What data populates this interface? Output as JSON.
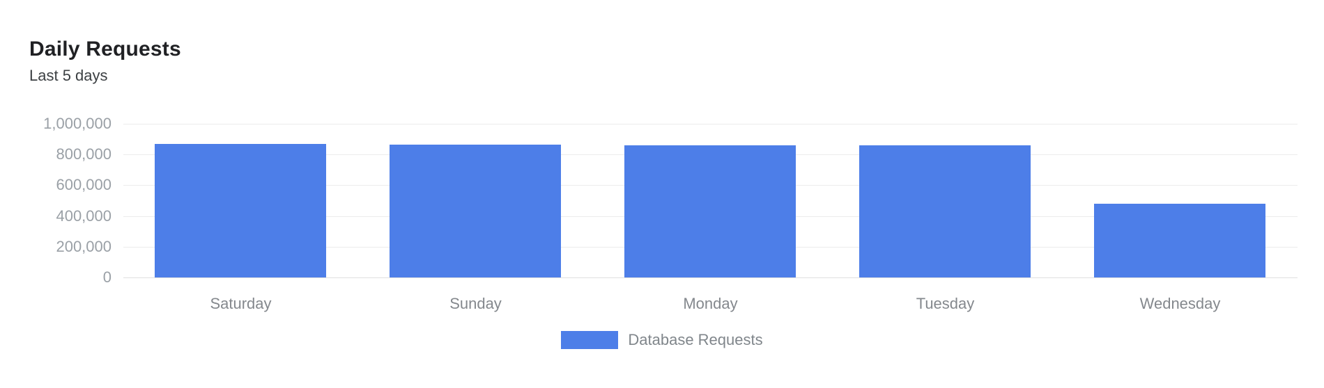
{
  "header": {
    "title": "Daily Requests",
    "subtitle": "Last 5 days"
  },
  "chart_data": {
    "type": "bar",
    "title": "Daily Requests",
    "subtitle": "Last 5 days",
    "categories": [
      "Saturday",
      "Sunday",
      "Monday",
      "Tuesday",
      "Wednesday"
    ],
    "series": [
      {
        "name": "Database Requests",
        "color": "#4d7ee8",
        "values": [
          868000,
          865000,
          862000,
          858000,
          480000
        ]
      }
    ],
    "xlabel": "",
    "ylabel": "",
    "ylim": [
      0,
      1000000
    ],
    "yticks": [
      {
        "value": 0,
        "label": "0"
      },
      {
        "value": 200000,
        "label": "200,000"
      },
      {
        "value": 400000,
        "label": "400,000"
      },
      {
        "value": 600000,
        "label": "600,000"
      },
      {
        "value": 800000,
        "label": "800,000"
      },
      {
        "value": 1000000,
        "label": "1,000,000"
      }
    ],
    "grid": true,
    "legend_position": "bottom"
  },
  "legend": {
    "label": "Database Requests"
  },
  "colors": {
    "bar": "#4d7ee8",
    "grid": "#ececec",
    "baseline": "#e0e0e0",
    "title_text": "#202124",
    "subtitle_text": "#3c4043",
    "axis_text": "#9aa0a6",
    "x_axis_text": "#84888d",
    "legend_text": "#80868b",
    "background": "#ffffff"
  }
}
